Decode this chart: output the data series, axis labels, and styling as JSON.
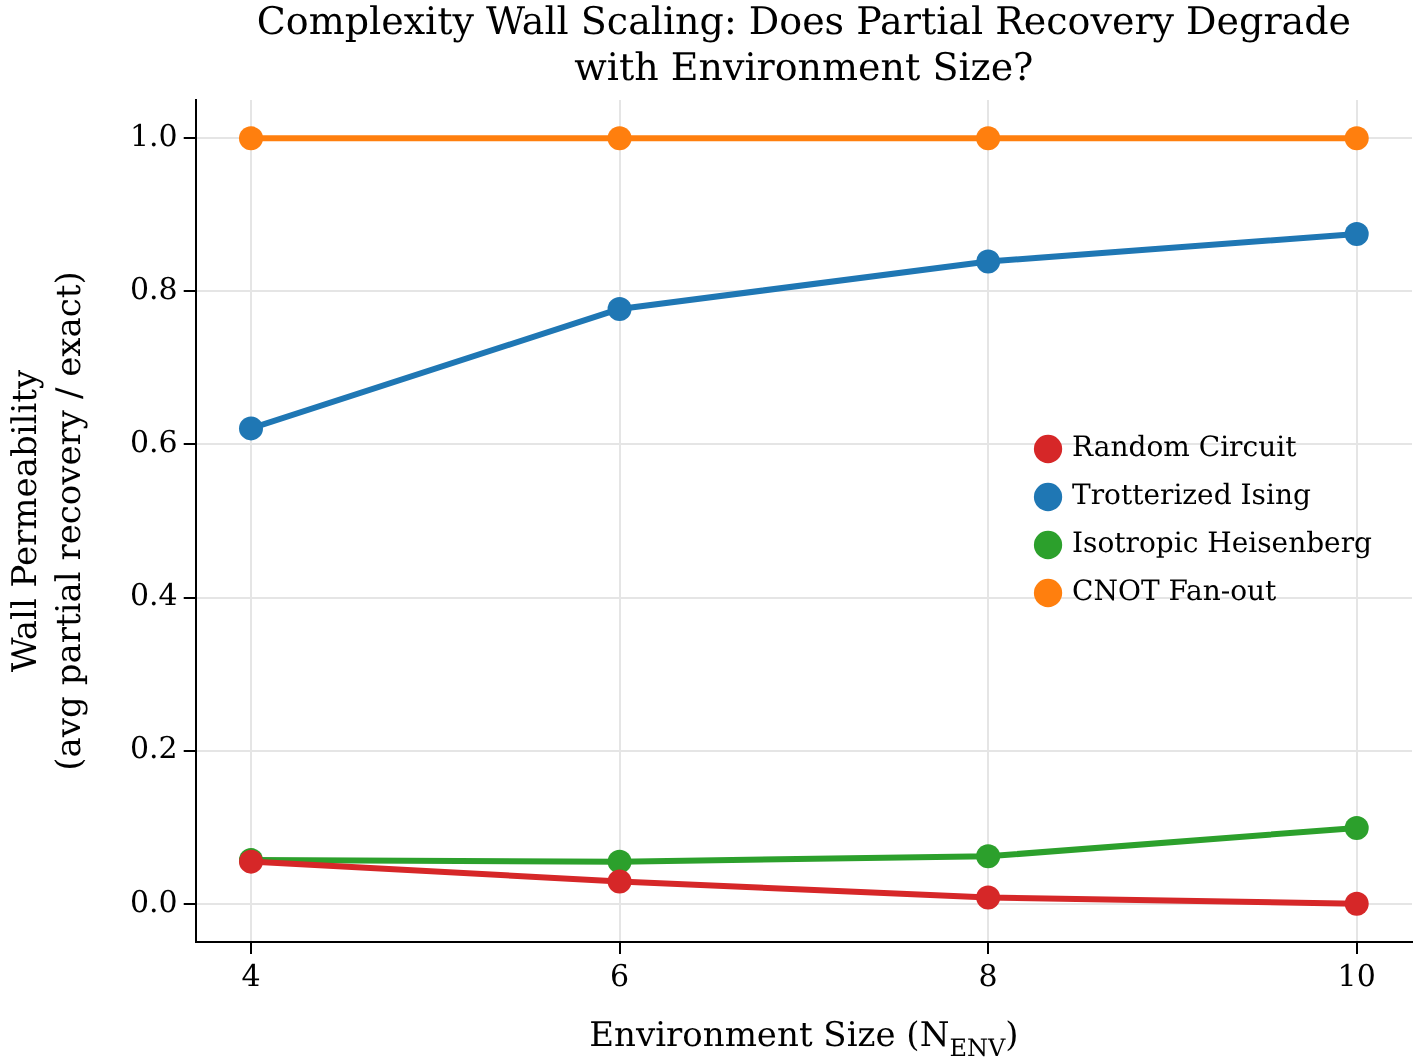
{
  "chart_data": {
    "type": "line",
    "title": "Complexity Wall Scaling: Does Partial Recovery Degrade\nwith Environment Size?",
    "xlabel": "Environment Size (N$_{ENV}$)",
    "ylabel": "Wall Permeability\n(avg partial recovery / exact)",
    "x": [
      4,
      6,
      8,
      10
    ],
    "series": [
      {
        "name": "Random Circuit",
        "color": "#d62728",
        "values": [
          0.055,
          0.029,
          0.008,
          0.0
        ]
      },
      {
        "name": "Trotterized Ising",
        "color": "#1f77b4",
        "values": [
          0.621,
          0.777,
          0.839,
          0.875
        ]
      },
      {
        "name": "Isotropic Heisenberg",
        "color": "#2ca02c",
        "values": [
          0.057,
          0.055,
          0.062,
          0.099
        ]
      },
      {
        "name": "CNOT Fan-out",
        "color": "#ff7f0e",
        "values": [
          1.0,
          1.0,
          1.0,
          1.0
        ]
      }
    ],
    "xlim": [
      3.7,
      10.3
    ],
    "ylim": [
      -0.05,
      1.05
    ],
    "xticks": [
      4,
      6,
      8,
      10
    ],
    "yticks": [
      {
        "value": 0,
        "label": "0.0"
      },
      {
        "value": 0.2,
        "label": "0.2"
      },
      {
        "value": 0.4,
        "label": "0.4"
      },
      {
        "value": 0.6,
        "label": "0.6"
      },
      {
        "value": 0.8,
        "label": "0.8"
      },
      {
        "value": 1,
        "label": "1.0"
      }
    ],
    "grid": true,
    "legend": "right",
    "marker": "circle",
    "line_style": "solid"
  }
}
